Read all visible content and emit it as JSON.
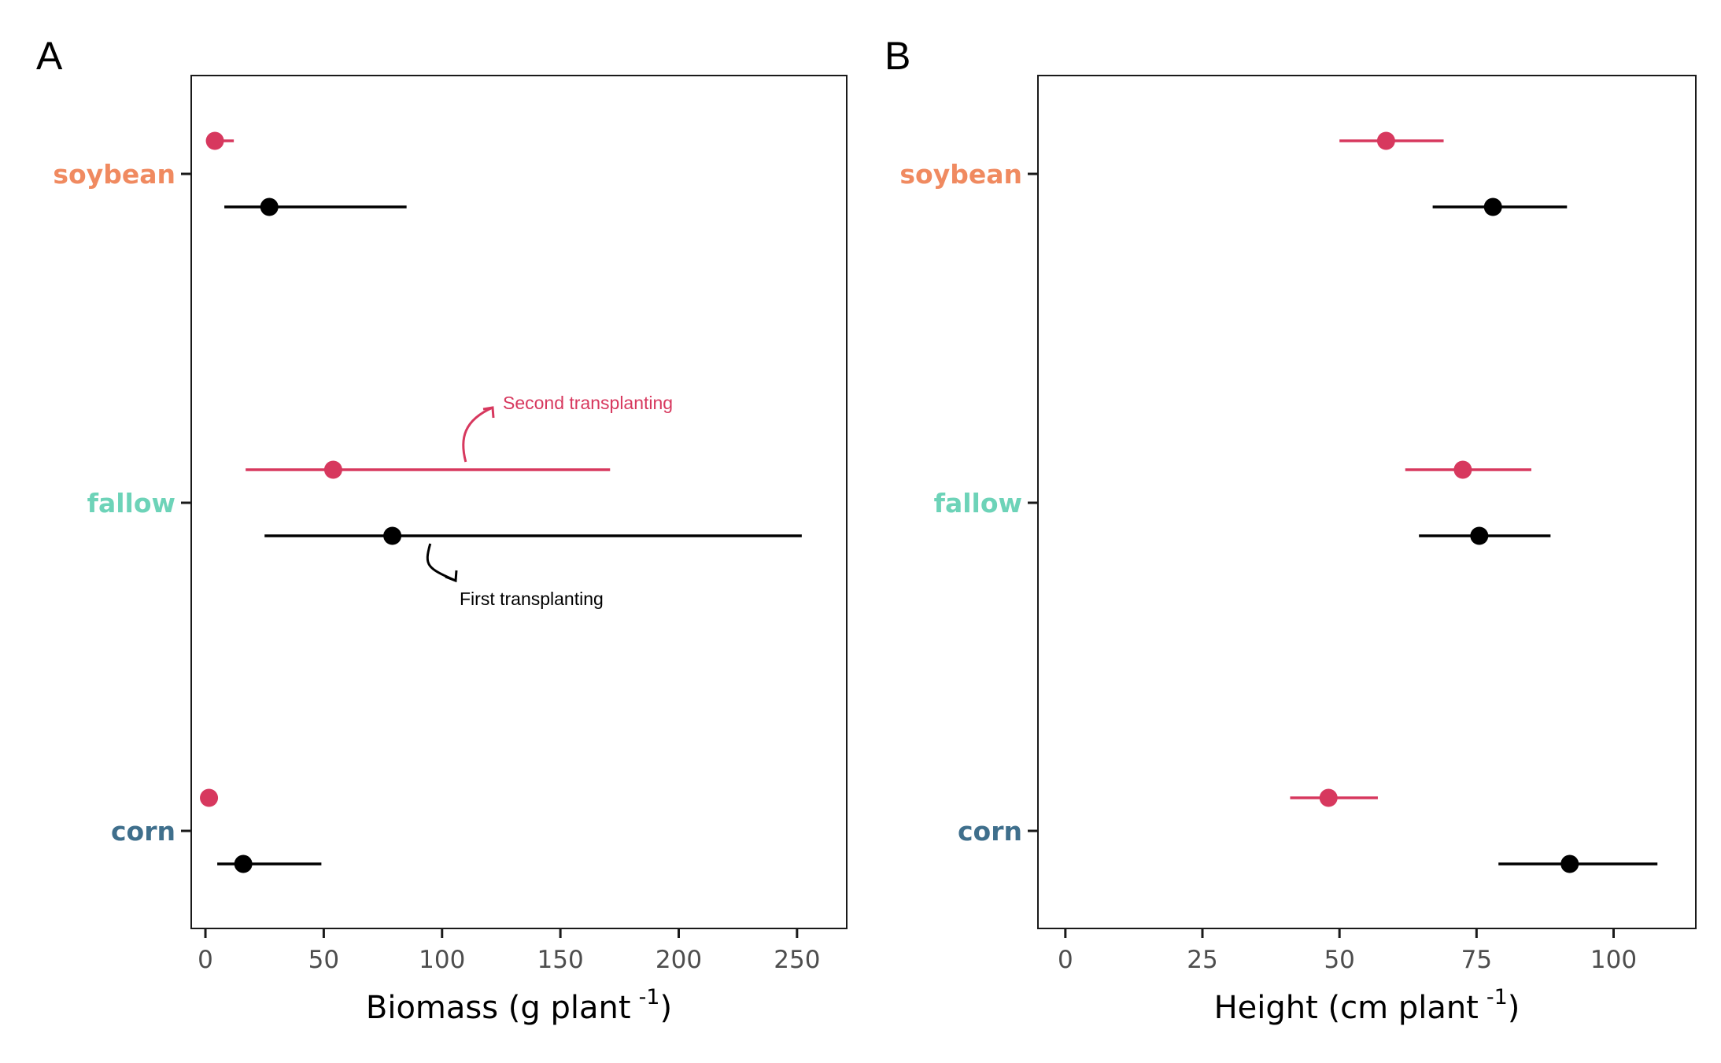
{
  "colors": {
    "second": "#D7385E",
    "first": "#000000",
    "soybean": "#F08A60",
    "fallow": "#6DD3B8",
    "corn": "#3F6F8C"
  },
  "chart_data": [
    {
      "type": "scatter",
      "panel_label": "A",
      "categories": [
        "soybean",
        "fallow",
        "corn"
      ],
      "xlabel": "Biomass (g plant",
      "xlabel_sup": "-1",
      "xlabel_close": ")",
      "xlim": [
        -6,
        271
      ],
      "xticks": [
        0,
        50,
        100,
        150,
        200,
        250
      ],
      "grid": false,
      "series": [
        {
          "key": "second",
          "points": [
            {
              "category": "soybean",
              "x": 4,
              "low": 3,
              "high": 12
            },
            {
              "category": "fallow",
              "x": 54,
              "low": 17,
              "high": 171
            },
            {
              "category": "corn",
              "x": 1.5,
              "low": 1,
              "high": 2
            }
          ]
        },
        {
          "key": "first",
          "points": [
            {
              "category": "soybean",
              "x": 27,
              "low": 8,
              "high": 85
            },
            {
              "category": "fallow",
              "x": 79,
              "low": 25,
              "high": 252
            },
            {
              "category": "corn",
              "x": 16,
              "low": 5,
              "high": 49
            }
          ]
        }
      ],
      "annotations": [
        {
          "text": "Second transplanting",
          "series": "second"
        },
        {
          "text": "First transplanting",
          "series": "first"
        }
      ]
    },
    {
      "type": "scatter",
      "panel_label": "B",
      "categories": [
        "soybean",
        "fallow",
        "corn"
      ],
      "xlabel": "Height (cm plant",
      "xlabel_sup": "-1",
      "xlabel_close": ")",
      "xlim": [
        -5,
        115
      ],
      "xticks": [
        0,
        25,
        50,
        75,
        100
      ],
      "grid": false,
      "series": [
        {
          "key": "second",
          "points": [
            {
              "category": "soybean",
              "x": 58.5,
              "low": 50,
              "high": 69
            },
            {
              "category": "fallow",
              "x": 72.5,
              "low": 62,
              "high": 85
            },
            {
              "category": "corn",
              "x": 48,
              "low": 41,
              "high": 57
            }
          ]
        },
        {
          "key": "first",
          "points": [
            {
              "category": "soybean",
              "x": 78,
              "low": 67,
              "high": 91.5
            },
            {
              "category": "fallow",
              "x": 75.5,
              "low": 64.5,
              "high": 88.5
            },
            {
              "category": "corn",
              "x": 92,
              "low": 79,
              "high": 108
            }
          ]
        }
      ]
    }
  ]
}
